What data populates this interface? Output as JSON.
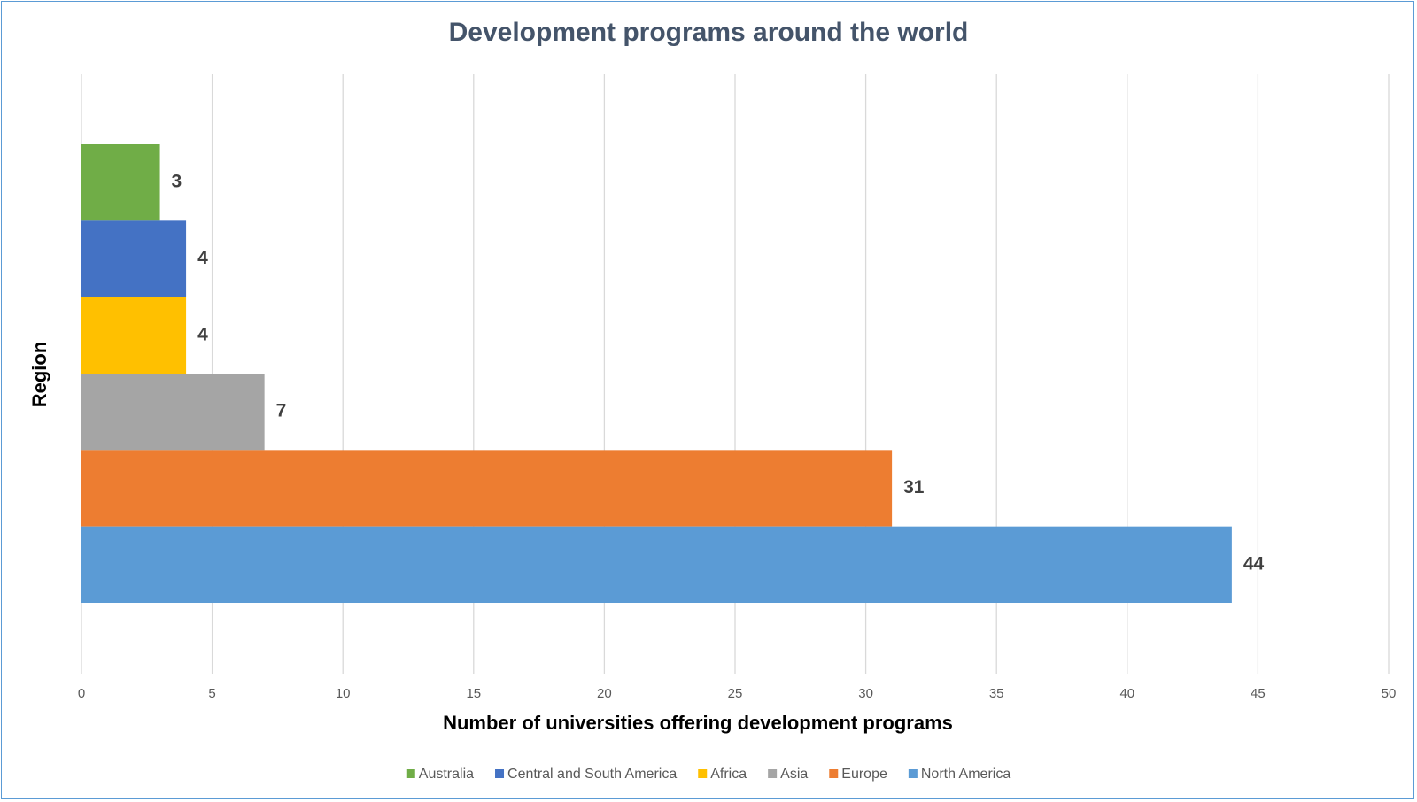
{
  "chart_data": {
    "type": "bar",
    "orientation": "horizontal",
    "title": "Development programs around the world",
    "xlabel": "Number of universities offering development programs",
    "ylabel": "Region",
    "xlim": [
      0,
      50
    ],
    "xticks": [
      0,
      5,
      10,
      15,
      20,
      25,
      30,
      35,
      40,
      45,
      50
    ],
    "grid": true,
    "legend_position": "bottom",
    "series": [
      {
        "name": "Australia",
        "value": 3,
        "label": "3",
        "color": "#70ad47"
      },
      {
        "name": "Central and South America",
        "value": 4,
        "label": "4",
        "color": "#4472c4"
      },
      {
        "name": "Africa",
        "value": 4,
        "label": "4",
        "color": "#ffc000"
      },
      {
        "name": "Asia",
        "value": 7,
        "label": "7",
        "color": "#a5a5a5"
      },
      {
        "name": "Europe",
        "value": 31,
        "label": "31",
        "color": "#ed7d31"
      },
      {
        "name": "North America",
        "value": 44,
        "label": "44",
        "color": "#5b9bd5"
      }
    ]
  }
}
